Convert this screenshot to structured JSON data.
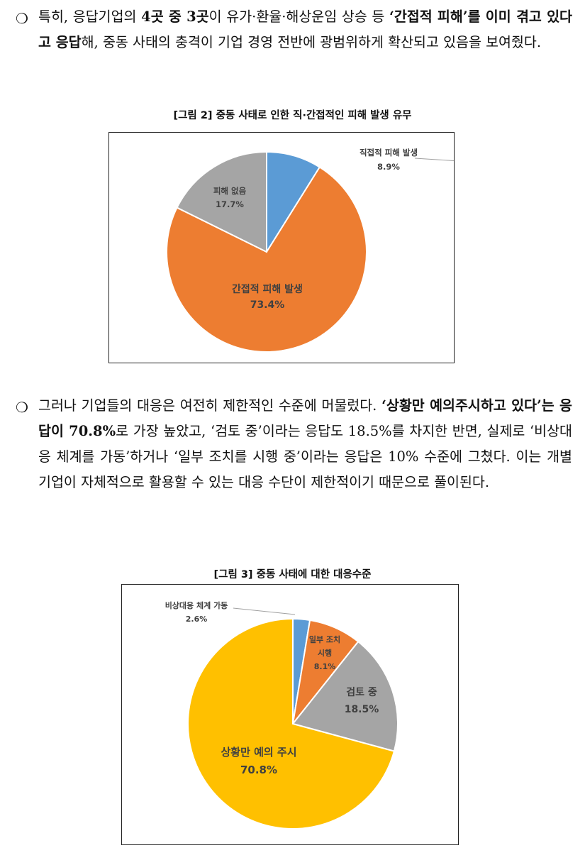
{
  "paragraph1": {
    "bullet": "❍",
    "segments": [
      {
        "text": "특히, 응답기업의 ",
        "bold": false
      },
      {
        "text": "4곳 중 3곳",
        "bold": true
      },
      {
        "text": "이 유가·환율·해상운임 상승 등 ",
        "bold": false
      },
      {
        "text": "‘간접적 피해’를 이미 겪고 있다고 응답",
        "bold": true
      },
      {
        "text": "해, 중동 사태의 충격이 기업 경영 전반에 광범위하게 확산되고 있음을 보여줬다.",
        "bold": false
      }
    ]
  },
  "figure2": {
    "caption": "[그림 2] 중동 사태로 인한 직·간접적인 피해 발생 유무",
    "chart_data": {
      "type": "pie",
      "title": "",
      "start_angle_deg": 0,
      "slices": [
        {
          "label": "직접적 피해 발생",
          "value": 8.9,
          "value_label": "8.9%",
          "color": "#5b9bd5"
        },
        {
          "label": "간접적 피해 발생",
          "value": 73.4,
          "value_label": "73.4%",
          "color": "#ed7d31"
        },
        {
          "label": "피해 없음",
          "value": 17.7,
          "value_label": "17.7%",
          "color": "#a5a5a5"
        }
      ]
    }
  },
  "paragraph2": {
    "bullet": "❍",
    "segments": [
      {
        "text": "그러나 기업들의 대응은 여전히 제한적인 수준에 머물렀다. ",
        "bold": false
      },
      {
        "text": "‘상황만 예의주시하고 있다’는 응답이 70.8%",
        "bold": true
      },
      {
        "text": "로 가장 높았고, ‘검토 중’이라는 응답도 18.5%를 차지한 반면, 실제로 ‘비상대응 체계를 가동’하거나 ‘일부 조치를 시행 중’이라는 응답은 10% 수준에 그쳤다. 이는 개별 기업이 자체적으로 활용할 수 있는 대응 수단이 제한적이기 때문으로 풀이된다.",
        "bold": false
      }
    ]
  },
  "figure3": {
    "caption": "[그림 3] 중동 사태에 대한 대응수준",
    "chart_data": {
      "type": "pie",
      "title": "",
      "start_angle_deg": 0,
      "slices": [
        {
          "label": "비상대응 체계 가동",
          "value": 2.6,
          "value_label": "2.6%",
          "color": "#5b9bd5"
        },
        {
          "label": "일부 조치 시행",
          "value": 8.1,
          "value_label": "8.1%",
          "color": "#ed7d31"
        },
        {
          "label": "검토 중",
          "value": 18.5,
          "value_label": "18.5%",
          "color": "#a5a5a5"
        },
        {
          "label": "상황만 예의 주시",
          "value": 70.8,
          "value_label": "70.8%",
          "color": "#ffc000"
        }
      ]
    }
  }
}
